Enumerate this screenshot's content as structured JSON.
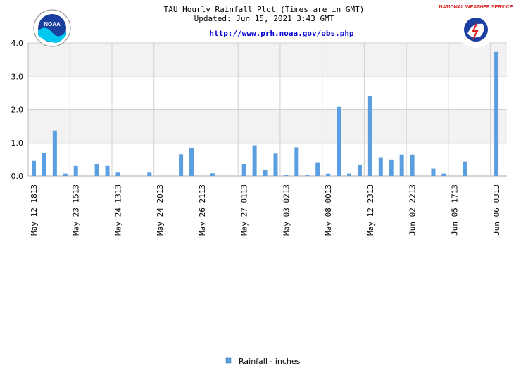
{
  "header": {
    "title": "TAU Hourly Rainfall Plot (Times are in GMT)",
    "updated": "Updated: Jun 15, 2021 3:43 GMT",
    "url": "http://www.prh.noaa.gov/obs.php"
  },
  "logos": {
    "left_text": "NOAA",
    "right_text": "NATIONAL WEATHER SERVICE"
  },
  "colors": {
    "bar": "#5b9fe0",
    "band": "#f2f2f2",
    "grid": "#d0d0d0",
    "url": "#0000cc"
  },
  "chart_data": {
    "type": "bar",
    "title": "TAU Hourly Rainfall Plot (Times are in GMT)",
    "ylim": [
      0,
      4
    ],
    "yticks": [
      "0.0",
      "1.0",
      "2.0",
      "3.0",
      "4.0"
    ],
    "grid": true,
    "legend_position": "bottom-center",
    "x_tick_labels": [
      "May 12 1813",
      "May 23 1513",
      "May 24 1313",
      "May 24 2013",
      "May 26 2113",
      "May 27 0113",
      "May 03 0213",
      "May 08 0013",
      "May 12 2313",
      "Jun 02 2213",
      "Jun 05 1713",
      "Jun 06 0313"
    ],
    "series": [
      {
        "name": "Rainfall - inches",
        "values": [
          0.45,
          0.68,
          1.36,
          0.07,
          0.3,
          0,
          0.36,
          0.3,
          0.1,
          0,
          0,
          0.1,
          0,
          0,
          0.65,
          0.83,
          0,
          0.08,
          0,
          0,
          0.36,
          0.92,
          0.18,
          0.67,
          0.02,
          0.86,
          0.02,
          0.41,
          0.07,
          2.08,
          0.07,
          0.34,
          2.4,
          0.56,
          0.49,
          0.64,
          0.64,
          0,
          0.22,
          0.07,
          0,
          0.43,
          0,
          0,
          3.73
        ]
      }
    ]
  }
}
